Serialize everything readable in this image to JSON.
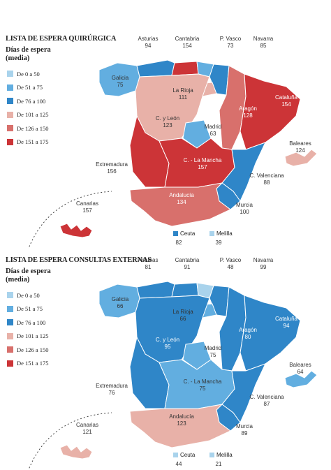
{
  "colors": {
    "c1": "#a9d3ec",
    "c2": "#62aee0",
    "c3": "#2f86c8",
    "c4": "#e8b1a8",
    "c5": "#d8706c",
    "c6": "#cc3437"
  },
  "legend": {
    "title_line1": "Días de espera",
    "title_line2": "(media)",
    "items": [
      {
        "label": "De 0 a 50",
        "color_key": "c1"
      },
      {
        "label": "De 51 a 75",
        "color_key": "c2"
      },
      {
        "label": "De 76 a 100",
        "color_key": "c3"
      },
      {
        "label": "De 101 a 125",
        "color_key": "c4"
      },
      {
        "label": "De 126 a 150",
        "color_key": "c5"
      },
      {
        "label": "De 151 a 175",
        "color_key": "c6"
      }
    ]
  },
  "maps": [
    {
      "title": "LISTA DE ESPERA QUIRÚRGICA",
      "regions": {
        "galicia": {
          "name": "Galicia",
          "value": "75"
        },
        "asturias": {
          "name": "Asturias",
          "value": "94"
        },
        "cantabria": {
          "name": "Cantabria",
          "value": "154"
        },
        "pvasco": {
          "name": "P. Vasco",
          "value": "73"
        },
        "navarra": {
          "name": "Navarra",
          "value": "85"
        },
        "larioja": {
          "name": "La Rioja",
          "value": "111"
        },
        "aragon": {
          "name": "Aragón",
          "value": "128"
        },
        "cataluna": {
          "name": "Cataluña",
          "value": "154"
        },
        "cyleon": {
          "name": "C. y León",
          "value": "123"
        },
        "madrid": {
          "name": "Madrid",
          "value": "63"
        },
        "extremadura": {
          "name": "Extremadura",
          "value": "156"
        },
        "clamancha": {
          "name": "C. - La Mancha",
          "value": "157"
        },
        "cvalenciana": {
          "name": "C. Valenciana",
          "value": "88"
        },
        "baleares": {
          "name": "Baleares",
          "value": "124"
        },
        "andalucia": {
          "name": "Andalucía",
          "value": "134"
        },
        "murcia": {
          "name": "Murcia",
          "value": "100"
        },
        "canarias": {
          "name": "Canarias",
          "value": "157"
        },
        "ceuta": {
          "name": "Ceuta",
          "value": "82"
        },
        "melilla": {
          "name": "Melilla",
          "value": "39"
        }
      }
    },
    {
      "title": "LISTA DE ESPERA CONSULTAS EXTERNAS",
      "regions": {
        "galicia": {
          "name": "Galicia",
          "value": "66"
        },
        "asturias": {
          "name": "Asturias",
          "value": "81"
        },
        "cantabria": {
          "name": "Cantabria",
          "value": "91"
        },
        "pvasco": {
          "name": "P. Vasco",
          "value": "48"
        },
        "navarra": {
          "name": "Navarra",
          "value": "99"
        },
        "larioja": {
          "name": "La Rioja",
          "value": "66"
        },
        "aragon": {
          "name": "Aragón",
          "value": "80"
        },
        "cataluna": {
          "name": "Cataluña",
          "value": "94"
        },
        "cyleon": {
          "name": "C. y León",
          "value": "95"
        },
        "madrid": {
          "name": "Madrid",
          "value": "75"
        },
        "extremadura": {
          "name": "Extremadura",
          "value": "76"
        },
        "clamancha": {
          "name": "C. - La Mancha",
          "value": "75"
        },
        "cvalenciana": {
          "name": "C. Valenciana",
          "value": "87"
        },
        "baleares": {
          "name": "Baleares",
          "value": "64"
        },
        "andalucia": {
          "name": "Andalucía",
          "value": "123"
        },
        "murcia": {
          "name": "Murcia",
          "value": "89"
        },
        "canarias": {
          "name": "Canarias",
          "value": "121"
        },
        "ceuta": {
          "name": "Ceuta",
          "value": "44"
        },
        "melilla": {
          "name": "Melilla",
          "value": "21"
        }
      }
    }
  ]
}
